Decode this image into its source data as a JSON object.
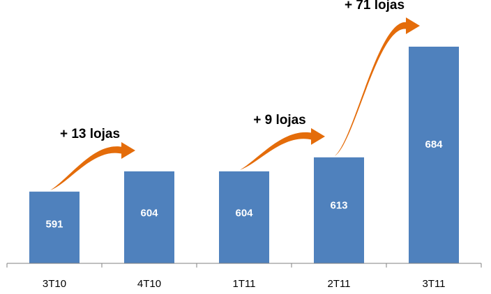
{
  "chart_data": {
    "type": "bar",
    "categories": [
      "3T10",
      "4T10",
      "1T11",
      "2T11",
      "3T11"
    ],
    "values": [
      591,
      604,
      604,
      613,
      684
    ],
    "data_labels": [
      "591",
      "604",
      "604",
      "613",
      "684"
    ],
    "title": "",
    "xlabel": "",
    "ylabel": "",
    "grid": false,
    "legend": "none",
    "annotations": [
      {
        "text": "+ 13 lojas",
        "from": 0,
        "to": 1
      },
      {
        "text": "+ 9 lojas",
        "from": 2,
        "to": 3
      },
      {
        "text": "+ 71 lojas",
        "from": 3,
        "to": 4
      }
    ],
    "colors": {
      "bar": "#4f81bd",
      "arrow": "#e46c0a",
      "data_label": "#ffffff"
    }
  }
}
